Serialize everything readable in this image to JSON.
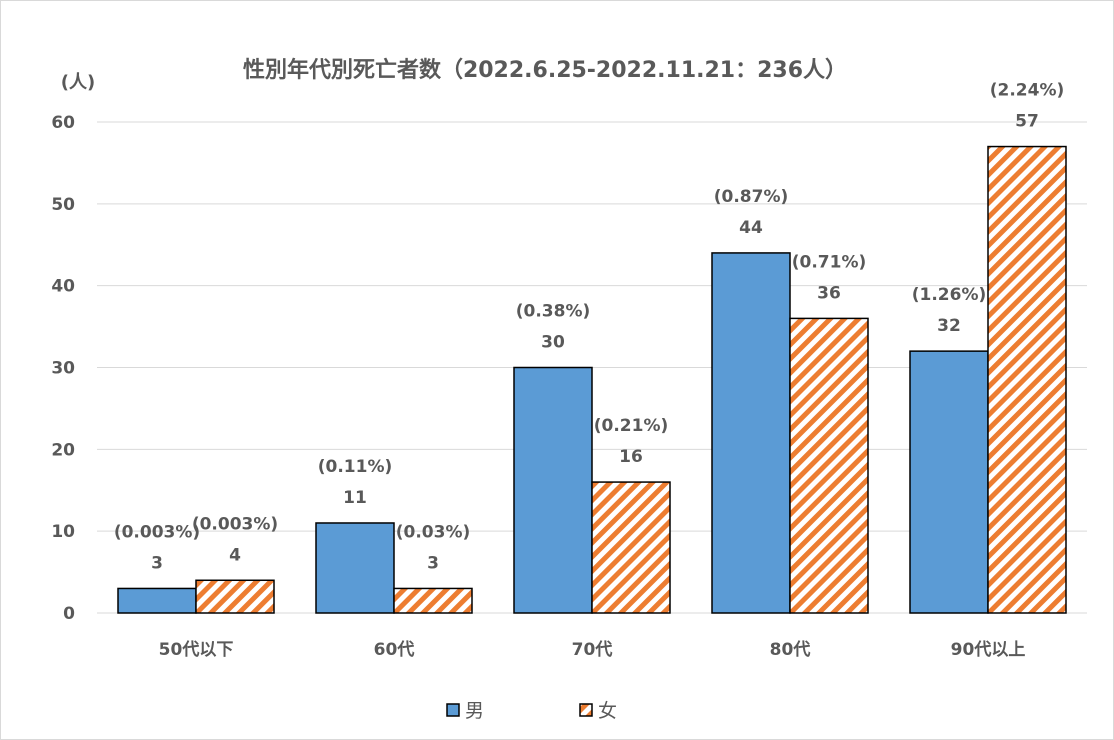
{
  "chart_data": {
    "type": "bar",
    "title": "性別年代別死亡者数（2022.6.25-2022.11.21：236人）",
    "ylabel": "(人)",
    "xlabel": "",
    "ylim": [
      0,
      60
    ],
    "yticks": [
      0,
      10,
      20,
      30,
      40,
      50,
      60
    ],
    "grid": true,
    "legend_position": "bottom",
    "categories": [
      "50代以下",
      "60代",
      "70代",
      "80代",
      "90代以上"
    ],
    "series": [
      {
        "name": "男",
        "color": "#5b9bd5",
        "pattern": "solid",
        "values": [
          3,
          11,
          30,
          44,
          32
        ],
        "percent_labels": [
          "(0.003%)",
          "(0.11%)",
          "(0.38%)",
          "(0.87%)",
          "(1.26%)"
        ]
      },
      {
        "name": "女",
        "color": "#ed7d31",
        "pattern": "diagonal-stripes",
        "values": [
          4,
          3,
          16,
          36,
          57
        ],
        "percent_labels": [
          "(0.003%)",
          "(0.03%)",
          "(0.21%)",
          "(0.71%)",
          "(2.24%)"
        ]
      }
    ]
  }
}
